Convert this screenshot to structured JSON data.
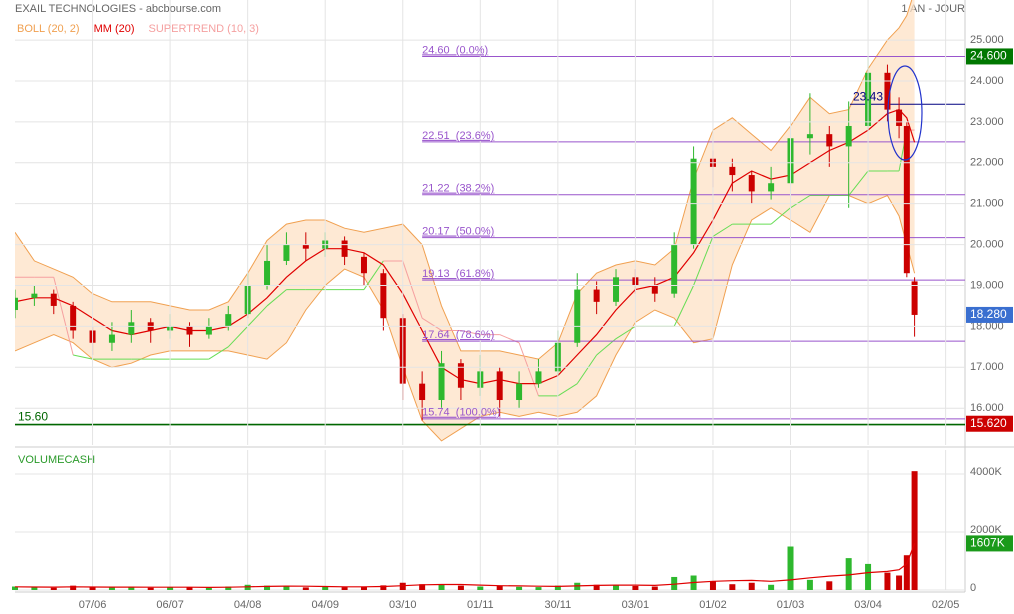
{
  "chart_data": [
    {
      "type": "candlestick",
      "title": "EXAIL TECHNOLOGIES - abcbourse.com",
      "subtitle": "1 AN - JOUR",
      "x": [
        0,
        5,
        10,
        15,
        20,
        25,
        30,
        35,
        40,
        45,
        50,
        55,
        60,
        65,
        70,
        75,
        80,
        85,
        90,
        95,
        100,
        105,
        110,
        115,
        120,
        125,
        130,
        135,
        140,
        145,
        150,
        155,
        160,
        165,
        170,
        175,
        180,
        185,
        190,
        195,
        200,
        205,
        210,
        215,
        220,
        225,
        228,
        230,
        232
      ],
      "open": [
        18.4,
        18.7,
        18.8,
        18.5,
        17.9,
        17.6,
        17.8,
        18.1,
        17.9,
        18.0,
        17.8,
        18.0,
        18.3,
        19.0,
        19.6,
        20.0,
        19.9,
        20.1,
        19.7,
        19.3,
        18.2,
        16.6,
        16.2,
        17.1,
        16.5,
        16.9,
        16.2,
        16.6,
        16.9,
        17.6,
        18.9,
        18.6,
        19.2,
        19.0,
        18.8,
        20.0,
        22.1,
        21.9,
        21.7,
        21.3,
        21.5,
        22.6,
        22.7,
        22.4,
        22.9,
        24.2,
        23.3,
        22.9,
        19.1
      ],
      "high": [
        18.9,
        19.0,
        18.9,
        18.6,
        18.0,
        18.1,
        18.4,
        18.2,
        18.3,
        18.1,
        18.2,
        18.5,
        19.3,
        20.0,
        20.3,
        20.3,
        20.3,
        20.2,
        19.8,
        19.4,
        18.3,
        16.9,
        17.4,
        17.2,
        17.3,
        17.0,
        16.9,
        17.2,
        17.9,
        19.3,
        19.1,
        19.4,
        19.4,
        19.2,
        20.3,
        22.4,
        22.3,
        22.1,
        21.8,
        21.9,
        23.0,
        23.7,
        22.9,
        23.5,
        24.6,
        24.4,
        23.6,
        23.0,
        19.2
      ],
      "low": [
        18.2,
        18.5,
        18.3,
        17.7,
        17.3,
        17.4,
        17.6,
        17.6,
        17.7,
        17.5,
        17.7,
        17.9,
        18.2,
        18.9,
        19.5,
        19.6,
        19.7,
        19.5,
        19.0,
        17.9,
        16.2,
        15.7,
        16.0,
        16.2,
        16.3,
        15.8,
        16.0,
        16.5,
        16.8,
        17.5,
        18.3,
        18.5,
        18.8,
        18.6,
        18.7,
        19.9,
        21.4,
        21.3,
        21.0,
        21.1,
        21.4,
        22.2,
        21.9,
        20.9,
        22.8,
        23.0,
        22.6,
        19.2,
        17.75
      ],
      "close": [
        18.7,
        18.8,
        18.5,
        17.9,
        17.6,
        17.8,
        18.1,
        17.9,
        18.0,
        17.8,
        18.0,
        18.3,
        19.0,
        19.6,
        20.0,
        19.9,
        20.1,
        19.7,
        19.3,
        18.2,
        16.6,
        16.2,
        17.1,
        16.5,
        16.9,
        16.2,
        16.6,
        16.9,
        17.6,
        18.9,
        18.6,
        19.2,
        19.0,
        18.8,
        20.0,
        22.1,
        21.9,
        21.7,
        21.3,
        21.5,
        22.6,
        22.7,
        22.4,
        22.9,
        24.2,
        23.3,
        22.9,
        19.3,
        18.28
      ],
      "up_color": "#2eb82e",
      "down_color": "#cc0000",
      "overlays": [
        {
          "name": "BOLL (20, 2)",
          "color": "#f0a050",
          "fill": "#fde2c6",
          "upper": [
            20.3,
            19.6,
            19.4,
            19.2,
            18.8,
            18.6,
            18.6,
            18.6,
            18.5,
            18.4,
            18.4,
            18.6,
            19.3,
            20.1,
            20.5,
            20.6,
            20.6,
            20.4,
            20.3,
            20.4,
            20.5,
            20.0,
            18.5,
            17.4,
            17.4,
            17.4,
            17.3,
            17.2,
            17.6,
            18.8,
            19.3,
            19.5,
            19.6,
            19.5,
            19.9,
            21.6,
            22.8,
            23.1,
            22.7,
            22.3,
            22.9,
            23.6,
            23.2,
            23.3,
            24.3,
            25.0,
            25.3,
            25.6,
            26.2
          ],
          "lower": [
            17.4,
            17.6,
            17.8,
            17.6,
            17.2,
            17.0,
            17.1,
            17.3,
            17.4,
            17.4,
            17.4,
            17.4,
            17.3,
            17.2,
            17.6,
            18.4,
            19.0,
            19.4,
            19.2,
            18.4,
            17.0,
            15.7,
            15.2,
            15.5,
            15.8,
            15.9,
            15.8,
            15.9,
            15.8,
            15.9,
            16.3,
            17.3,
            18.1,
            18.4,
            18.2,
            17.6,
            17.7,
            19.5,
            20.6,
            20.9,
            20.6,
            20.3,
            21.2,
            21.2,
            21.0,
            21.2,
            20.7,
            20.0,
            19.3
          ]
        },
        {
          "name": "MM (20)",
          "color": "#e00000",
          "values": [
            18.6,
            18.7,
            18.7,
            18.5,
            18.2,
            17.9,
            17.8,
            17.9,
            18.0,
            17.9,
            17.9,
            18.0,
            18.3,
            18.7,
            19.2,
            19.6,
            19.9,
            19.9,
            19.8,
            19.5,
            18.8,
            17.9,
            17.0,
            16.7,
            16.6,
            16.7,
            16.6,
            16.6,
            16.8,
            17.3,
            17.8,
            18.4,
            18.9,
            19.0,
            19.2,
            19.8,
            20.6,
            21.5,
            21.8,
            21.6,
            21.7,
            22.0,
            22.3,
            22.5,
            22.8,
            23.2,
            23.3,
            23.1,
            22.5
          ]
        },
        {
          "name": "SUPERTREND (10, 3)",
          "color": "#f5a0a0",
          "up_color": "#66dd55",
          "values": [
            19.2,
            19.2,
            19.2,
            17.3,
            17.2,
            17.2,
            17.2,
            17.2,
            17.2,
            17.2,
            17.2,
            17.5,
            18.0,
            18.5,
            18.9,
            18.9,
            18.9,
            18.9,
            18.9,
            19.6,
            19.6,
            18.2,
            17.9,
            17.9,
            17.8,
            17.8,
            17.6,
            16.3,
            16.3,
            16.6,
            17.3,
            17.7,
            18.0,
            18.0,
            18.0,
            19.0,
            20.2,
            20.5,
            20.5,
            20.5,
            20.9,
            21.2,
            21.2,
            21.2,
            21.8,
            21.8,
            21.8,
            22.8,
            22.8
          ]
        }
      ],
      "xlim": [
        0,
        245
      ],
      "xticks": [
        {
          "value": 20,
          "label": "07/06"
        },
        {
          "value": 40,
          "label": "06/07"
        },
        {
          "value": 60,
          "label": "04/08"
        },
        {
          "value": 80,
          "label": "04/09"
        },
        {
          "value": 100,
          "label": "03/10"
        },
        {
          "value": 120,
          "label": "01/11"
        },
        {
          "value": 140,
          "label": "30/11"
        },
        {
          "value": 160,
          "label": "03/01"
        },
        {
          "value": 180,
          "label": "01/02"
        },
        {
          "value": 200,
          "label": "01/03"
        },
        {
          "value": 220,
          "label": "03/04"
        },
        {
          "value": 240,
          "label": "02/05"
        }
      ],
      "ylim": [
        15.1,
        25.98
      ],
      "yticks": [
        {
          "value": 16,
          "label": "16.000"
        },
        {
          "value": 17,
          "label": "17.000"
        },
        {
          "value": 18,
          "label": "18.000"
        },
        {
          "value": 19,
          "label": "19.000"
        },
        {
          "value": 20,
          "label": "20.000"
        },
        {
          "value": 21,
          "label": "21.000"
        },
        {
          "value": 22,
          "label": "22.000"
        },
        {
          "value": 23,
          "label": "23.000"
        },
        {
          "value": 24,
          "label": "24.000"
        },
        {
          "value": 25,
          "label": "25.000"
        }
      ],
      "fib_levels": [
        {
          "value": 24.6,
          "label": "24.60  (0.0%)"
        },
        {
          "value": 22.51,
          "label": "22.51  (23.6%)"
        },
        {
          "value": 21.22,
          "label": "21.22  (38.2%)"
        },
        {
          "value": 20.17,
          "label": "20.17  (50.0%)"
        },
        {
          "value": 19.13,
          "label": "19.13  (61.8%)"
        },
        {
          "value": 17.64,
          "label": "17.64  (78.6%)"
        },
        {
          "value": 15.74,
          "label": "15.74  (100.0%)"
        }
      ],
      "fib_color": "#9955cc",
      "levels": [
        {
          "value": 15.6,
          "label": "15.60",
          "color": "#006600"
        },
        {
          "value": 23.43,
          "label": "23.43",
          "color": "#000080"
        }
      ],
      "price_tags": [
        {
          "value": 24.6,
          "label": "24.600",
          "color": "#007700"
        },
        {
          "value": 18.28,
          "label": "18.280",
          "color": "#3a6fd0"
        },
        {
          "value": 15.62,
          "label": "15.620",
          "color": "#cc0000"
        }
      ],
      "grid": true
    },
    {
      "type": "bar",
      "title": "VOLUMECASH",
      "x": [
        0,
        5,
        10,
        15,
        20,
        25,
        30,
        35,
        40,
        45,
        50,
        55,
        60,
        65,
        70,
        75,
        80,
        85,
        90,
        95,
        100,
        105,
        110,
        115,
        120,
        125,
        130,
        135,
        140,
        145,
        150,
        155,
        160,
        165,
        170,
        175,
        180,
        185,
        190,
        195,
        200,
        205,
        210,
        215,
        220,
        225,
        228,
        230,
        232
      ],
      "values": [
        120,
        90,
        80,
        150,
        100,
        90,
        110,
        80,
        100,
        90,
        80,
        120,
        180,
        150,
        130,
        90,
        110,
        100,
        120,
        160,
        250,
        200,
        180,
        150,
        120,
        140,
        110,
        100,
        150,
        250,
        180,
        160,
        140,
        120,
        450,
        500,
        300,
        200,
        250,
        180,
        1500,
        350,
        300,
        1100,
        900,
        600,
        500,
        1200,
        4100
      ],
      "ma": {
        "values": [
          110,
          105,
          100,
          110,
          105,
          100,
          100,
          95,
          95,
          95,
          90,
          95,
          110,
          125,
          135,
          130,
          120,
          110,
          110,
          120,
          150,
          180,
          190,
          190,
          170,
          150,
          140,
          130,
          125,
          140,
          160,
          170,
          170,
          160,
          200,
          260,
          300,
          320,
          330,
          300,
          350,
          420,
          480,
          520,
          600,
          640,
          700,
          900,
          1607
        ],
        "color": "#e00000"
      },
      "tag": {
        "value": 1607,
        "label": "1607K",
        "color": "#1a9a1a"
      },
      "xlim": [
        0,
        245
      ],
      "ylim": [
        0,
        4830
      ],
      "yticks": [
        0,
        {
          "value": 2000,
          "label": "2000K"
        },
        {
          "value": 4000,
          "label": "4000K"
        }
      ],
      "grid": true
    }
  ]
}
